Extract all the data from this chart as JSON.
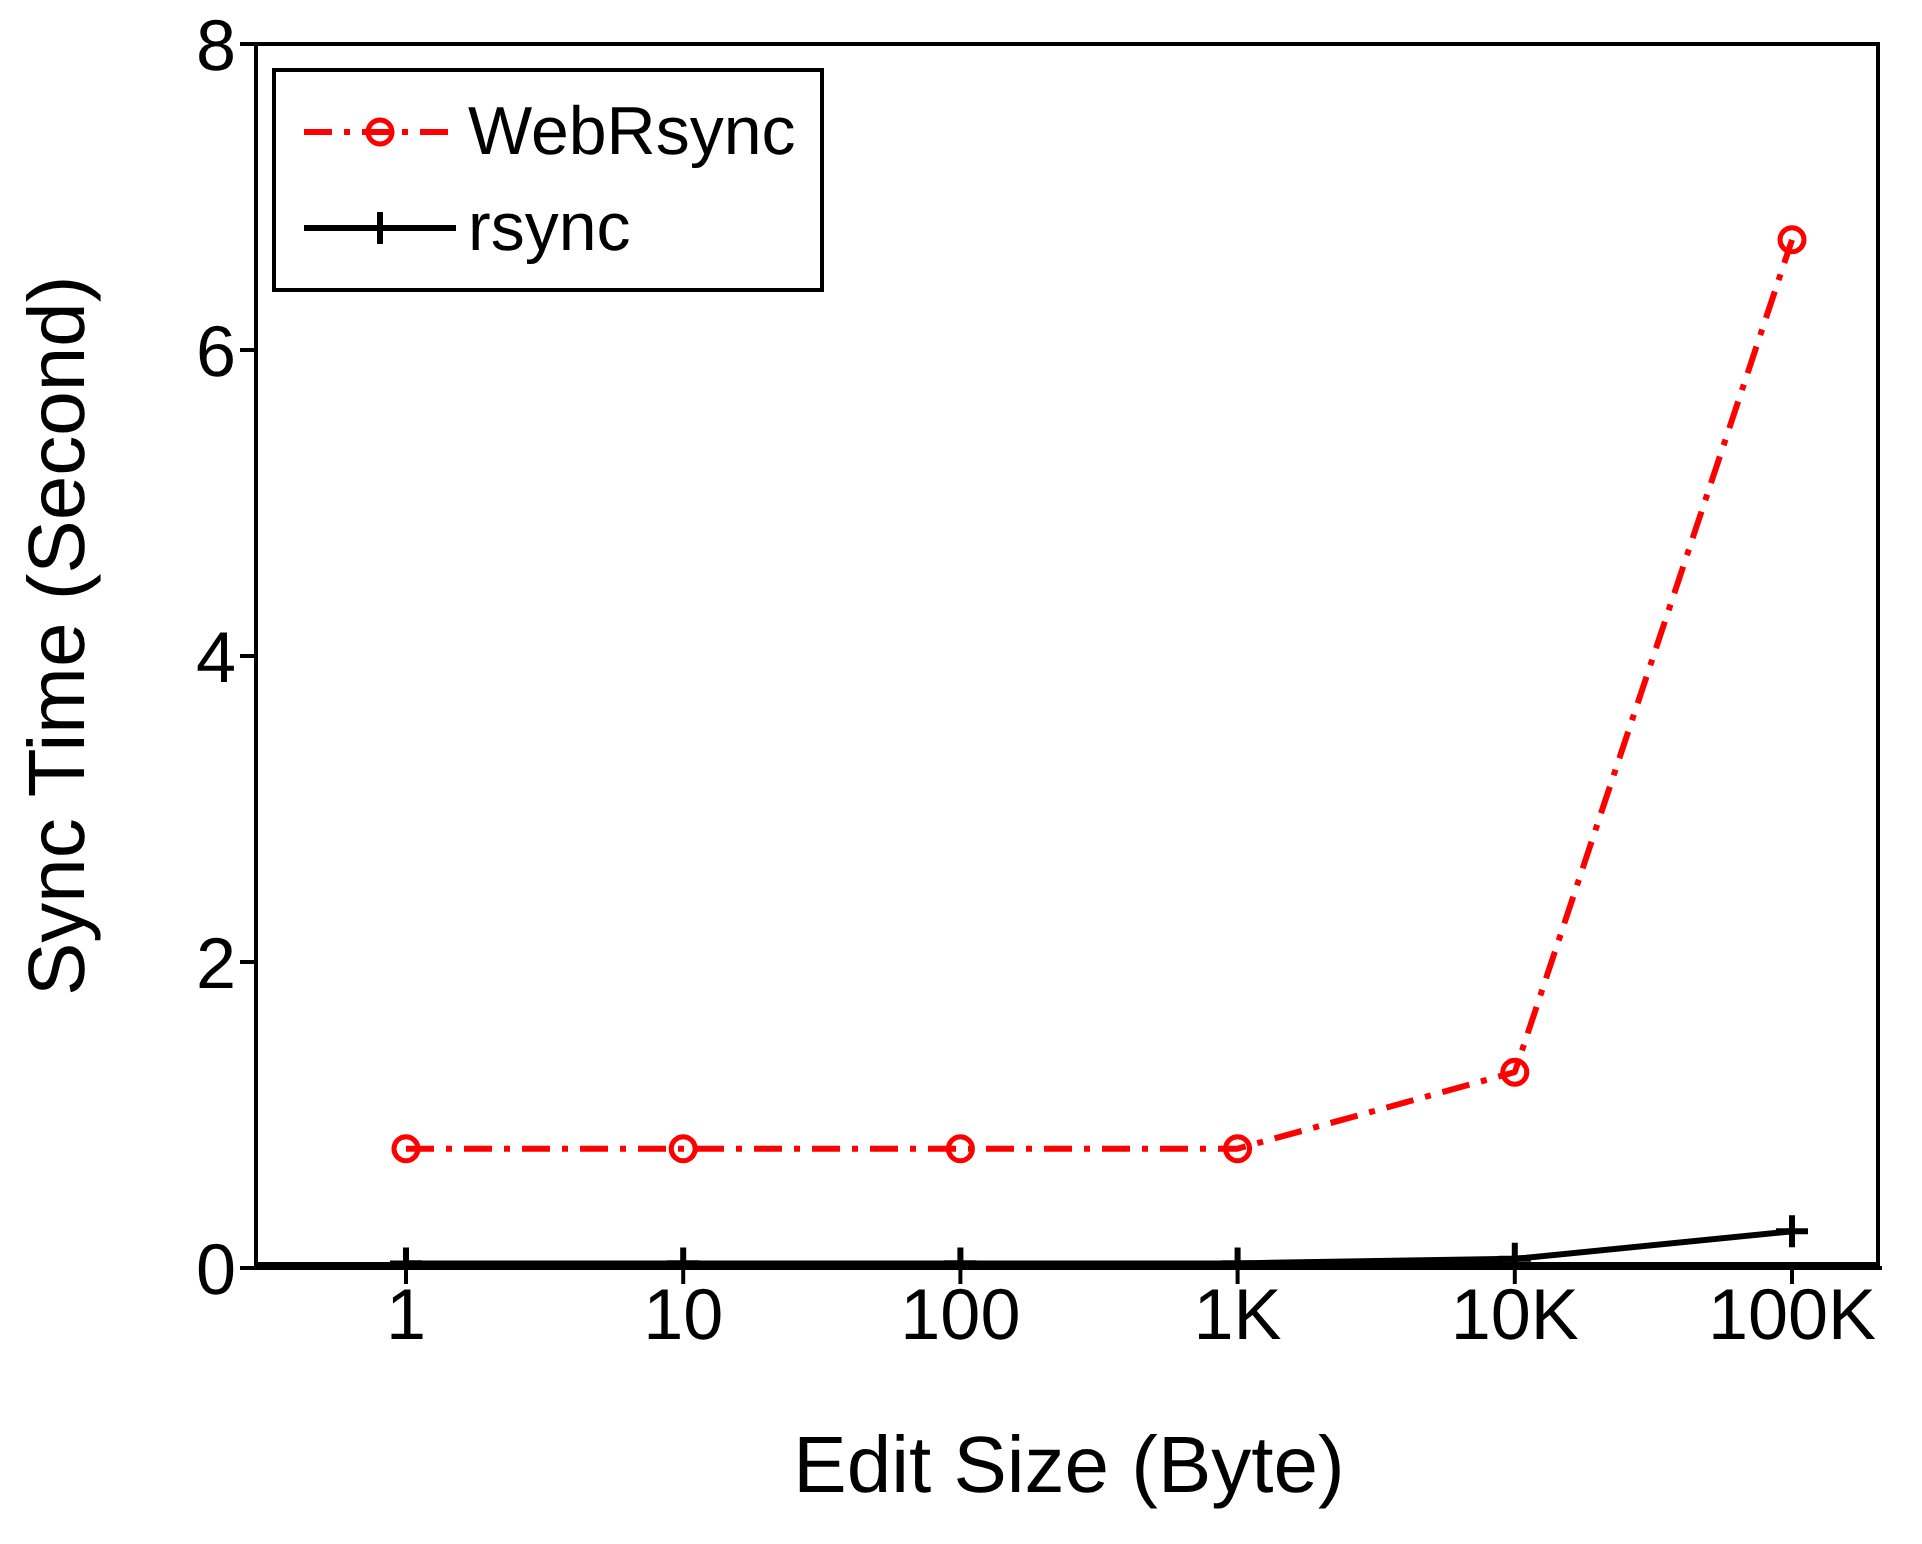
{
  "chart_data": {
    "type": "line",
    "xlabel": "Edit Size (Byte)",
    "ylabel": "Sync Time (Second)",
    "categories": [
      "1",
      "10",
      "100",
      "1K",
      "10K",
      "100K"
    ],
    "series": [
      {
        "name": "WebRsync",
        "color": "#ff0000",
        "values": [
          0.78,
          0.78,
          0.78,
          0.78,
          1.28,
          6.72
        ],
        "marker": "circle",
        "line_style": "dashed"
      },
      {
        "name": "rsync",
        "color": "#000000",
        "values": [
          0.03,
          0.03,
          0.03,
          0.03,
          0.06,
          0.24
        ],
        "marker": "cross",
        "line_style": "solid"
      }
    ],
    "ylim": [
      0,
      8
    ],
    "yticks": [
      0,
      2,
      4,
      6,
      8
    ],
    "legend": "top left"
  }
}
